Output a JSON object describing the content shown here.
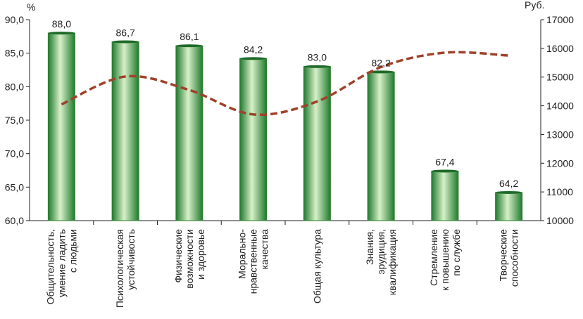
{
  "chart_data": {
    "type": "bar",
    "left_unit": "%",
    "right_unit": "Руб.",
    "categories": [
      [
        "Общительность,",
        "умение ладить",
        "с людьми"
      ],
      [
        "Психологическая",
        "устойчивость"
      ],
      [
        "Физические",
        "возможности",
        "и здоровье"
      ],
      [
        "Морально-",
        "нравственные",
        "качества"
      ],
      [
        "Общая культура"
      ],
      [
        "Знания,",
        "эрудиция,",
        "квалификация"
      ],
      [
        "Стремление",
        "к повышению",
        "по службе"
      ],
      [
        "Творческие",
        "способности"
      ]
    ],
    "bar_values": [
      88.0,
      86.7,
      86.1,
      84.2,
      83.0,
      82.2,
      67.4,
      64.2
    ],
    "bar_labels": [
      "88,0",
      "86,7",
      "86,1",
      "84,2",
      "83,0",
      "82,2",
      "67,4",
      "64,2"
    ],
    "line_values": [
      14050,
      15020,
      14550,
      13700,
      14150,
      15350,
      15850,
      15750
    ],
    "y_left_ticks": [
      "60,0",
      "65,0",
      "70,0",
      "75,0",
      "80,0",
      "85,0",
      "90,0"
    ],
    "y_left_range": [
      60,
      90
    ],
    "y_right_ticks": [
      "10000",
      "11000",
      "12000",
      "13000",
      "14000",
      "15000",
      "16000",
      "17000"
    ],
    "y_right_range": [
      10000,
      17000
    ],
    "colors": {
      "bar_dark": "#1f7a2e",
      "bar_light": "#d8f0c8",
      "line": "#a0412a",
      "axis": "#222222"
    }
  }
}
